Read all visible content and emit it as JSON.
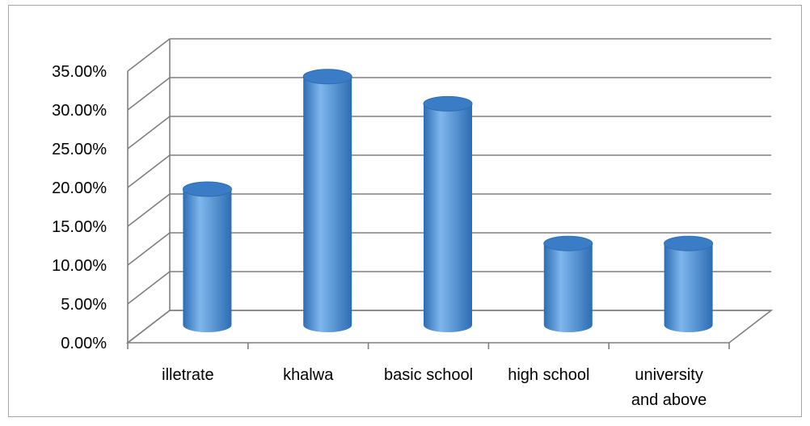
{
  "chart_data": {
    "type": "bar",
    "style": "3d-cylinder",
    "categories": [
      "illetrate",
      "khalwa",
      "basic school",
      "high school",
      "university and above"
    ],
    "category_lines": [
      [
        "illetrate"
      ],
      [
        "khalwa"
      ],
      [
        "basic school"
      ],
      [
        "high school"
      ],
      [
        "university",
        "and above"
      ]
    ],
    "values": [
      17.5,
      32.0,
      28.5,
      10.5,
      10.5
    ],
    "value_format": "percent",
    "ylim": [
      0,
      35
    ],
    "ytick_step": 5,
    "ytick_labels": [
      "0.00%",
      "5.00%",
      "10.00%",
      "15.00%",
      "20.00%",
      "25.00%",
      "30.00%",
      "35.00%"
    ],
    "title": "",
    "xlabel": "",
    "ylabel": "",
    "grid": true,
    "legend": "none",
    "colors": {
      "bar_light": "#7fb6ec",
      "bar_mid": "#4a8fd6",
      "bar_dark": "#2d6db4",
      "bar_top": "#3a7cc6",
      "grid": "#7f7f7f",
      "frame": "#a6a6a6"
    }
  }
}
